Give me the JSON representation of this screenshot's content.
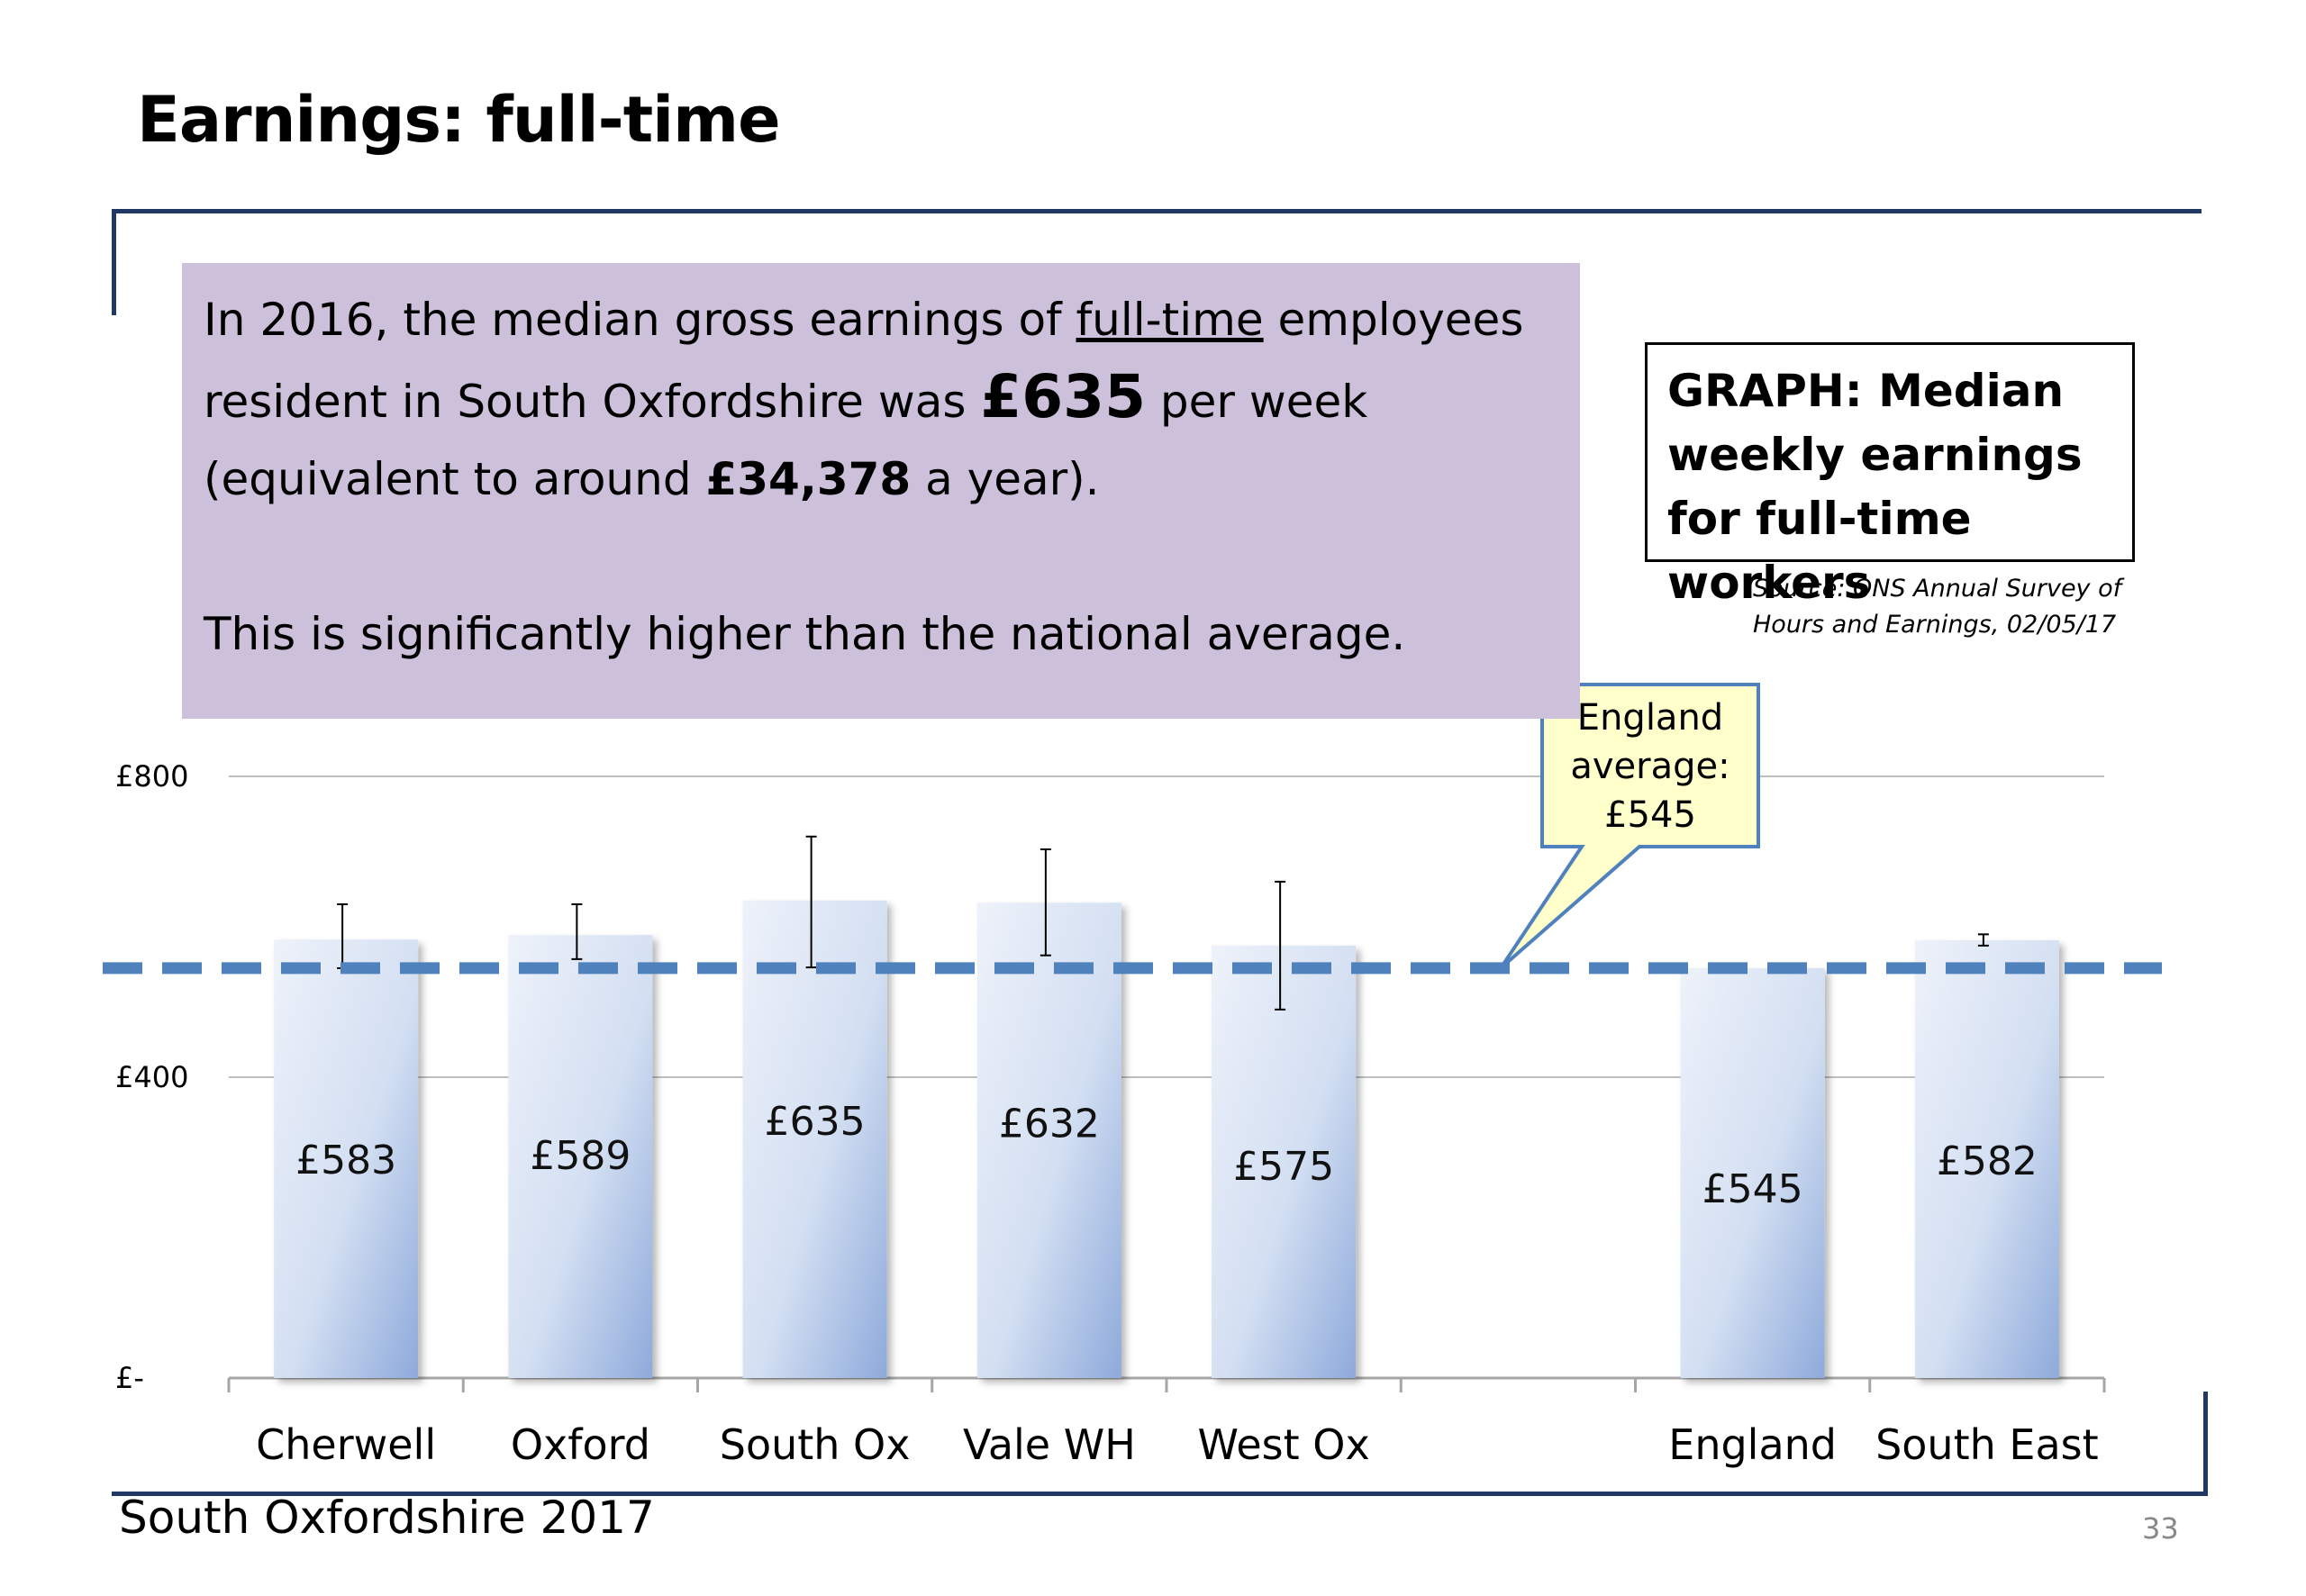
{
  "slide": {
    "title": "Earnings: full-time",
    "footer": "South Oxfordshire  2017",
    "page_number": "33"
  },
  "summary": {
    "p1_a": "In 2016, the median gross earnings of ",
    "p1_u": "full-time",
    "p1_b": " employees resident in South Oxfordshire was ",
    "p1_value": "£635",
    "p1_c": " per week (equivalent to around ",
    "p1_year": "£34,378",
    "p1_d": " a year).",
    "p2": "This is significantly higher than the national average."
  },
  "graph_label": "GRAPH: Median weekly earnings for full-time workers",
  "source": "Source: ONS Annual Survey of Hours and Earnings, 02/05/17",
  "chart_data": {
    "type": "bar",
    "title": "",
    "xlabel": "",
    "ylabel": "",
    "ylim": [
      0,
      800
    ],
    "y_ticks": [
      {
        "value": 0,
        "label": "£-"
      },
      {
        "value": 400,
        "label": "£400"
      },
      {
        "value": 800,
        "label": "£800"
      }
    ],
    "grid": true,
    "categories": [
      "Cherwell",
      "Oxford",
      "South Ox",
      "Vale WH",
      "West Ox",
      "",
      "England",
      "South East"
    ],
    "values": [
      583,
      589,
      635,
      632,
      575,
      null,
      545,
      582
    ],
    "data_labels": [
      "£583",
      "£589",
      "£635",
      "£632",
      "£575",
      "",
      "£545",
      "£582"
    ],
    "error_bars": [
      [
        545,
        630
      ],
      [
        557,
        630
      ],
      [
        546,
        720
      ],
      [
        562,
        703
      ],
      [
        490,
        660
      ],
      null,
      null,
      [
        575,
        590
      ]
    ],
    "reference_line": {
      "value": 545,
      "style": "dashed",
      "color": "#4f81bd"
    },
    "annotation": {
      "lines": [
        "England",
        "average:",
        "£545"
      ],
      "points_to_value": 545
    },
    "colors": {
      "bar_light": "#e8eef8",
      "bar_dark": "#8eaadb",
      "reference": "#4f81bd",
      "callout_fill": "#ffffcc",
      "callout_border": "#4f81bd",
      "grid": "#bfbfbf"
    }
  }
}
